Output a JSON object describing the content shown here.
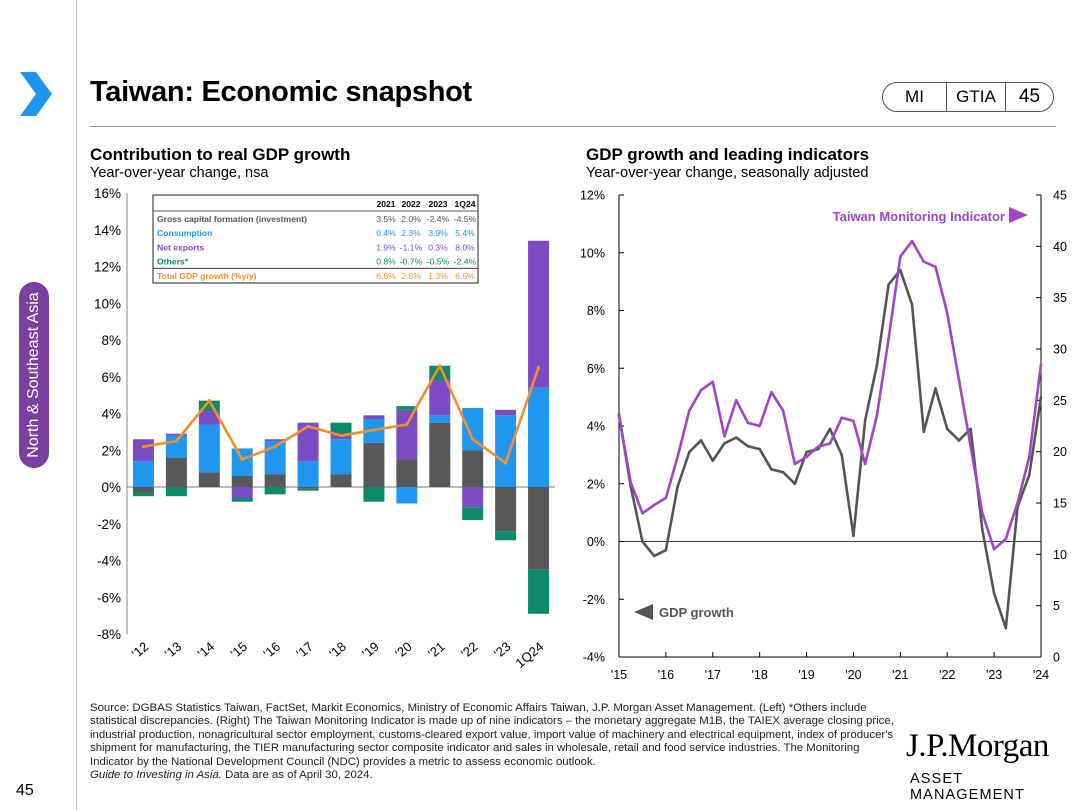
{
  "header": {
    "title": "Taiwan: Economic snapshot",
    "pill": [
      "MI",
      "GTIA",
      "45"
    ]
  },
  "sidebar": {
    "section_label": "North & Southeast Asia"
  },
  "colors": {
    "gcf": "#57585a",
    "consumption": "#1f97f0",
    "net_exports": "#7b4cc4",
    "others": "#0c8a6a",
    "total": "#f58e2c",
    "tmi": "#a044c8",
    "gdp": "#555555"
  },
  "left_chart": {
    "title": "Contribution to real GDP growth",
    "subtitle": "Year-over-year change, nsa",
    "table": {
      "headers": [
        "",
        "2021",
        "2022",
        "2023",
        "1Q24"
      ],
      "rows": [
        {
          "label": "Gross capital formation (investment)",
          "values": [
            "3.5%",
            "2.0%",
            "-2.4%",
            "-4.5%"
          ]
        },
        {
          "label": "Consumption",
          "values": [
            "0.4%",
            "2.3%",
            "3.9%",
            "5.4%"
          ]
        },
        {
          "label": "Net exports",
          "values": [
            "1.9%",
            "-1.1%",
            "0.3%",
            "8.0%"
          ]
        },
        {
          "label": "Others*",
          "values": [
            "0.8%",
            "-0.7%",
            "-0.5%",
            "-2.4%"
          ]
        },
        {
          "label": "Total GDP growth (%y/y)",
          "values": [
            "6.6%",
            "2.6%",
            "1.3%",
            "6.5%"
          ]
        }
      ]
    }
  },
  "right_chart": {
    "title": "GDP growth and leading indicators",
    "subtitle": "Year-over-year change, seasonally adjusted"
  },
  "chart_data": [
    {
      "type": "bar",
      "stacked": true,
      "title": "Contribution to real GDP growth",
      "subtitle": "Year-over-year change, nsa",
      "categories": [
        "'12",
        "'13",
        "'14",
        "'15",
        "'16",
        "'17",
        "'18",
        "'19",
        "'20",
        "'21",
        "'22",
        "'23",
        "1Q24"
      ],
      "ylim": [
        -8,
        16
      ],
      "yticks": [
        -8,
        -6,
        -4,
        -2,
        0,
        2,
        4,
        6,
        8,
        10,
        12,
        14,
        16
      ],
      "ytick_labels": [
        "-8%",
        "-6%",
        "-4%",
        "-2%",
        "0%",
        "2%",
        "4%",
        "6%",
        "8%",
        "10%",
        "12%",
        "14%",
        "16%"
      ],
      "series": [
        {
          "name": "Gross capital formation (investment)",
          "key": "gcf",
          "values": [
            -0.3,
            1.6,
            0.8,
            0.6,
            0.7,
            -0.1,
            0.7,
            2.4,
            1.5,
            3.5,
            2.0,
            -2.4,
            -4.5
          ]
        },
        {
          "name": "Consumption",
          "key": "consumption",
          "values": [
            1.4,
            1.2,
            2.6,
            1.5,
            1.8,
            1.4,
            1.9,
            1.3,
            -0.9,
            0.4,
            2.3,
            3.9,
            5.4
          ]
        },
        {
          "name": "Net exports",
          "key": "net_exports",
          "values": [
            1.2,
            0.1,
            0.7,
            -0.6,
            0.1,
            2.1,
            0.2,
            0.2,
            2.7,
            1.9,
            -1.1,
            0.3,
            8.0
          ]
        },
        {
          "name": "Others*",
          "key": "others",
          "values": [
            -0.2,
            -0.5,
            0.6,
            -0.2,
            -0.4,
            -0.1,
            0.7,
            -0.8,
            0.2,
            0.8,
            -0.7,
            -0.5,
            -2.4
          ]
        }
      ],
      "line": {
        "name": "Total GDP growth (%y/y)",
        "key": "total",
        "values": [
          2.2,
          2.5,
          4.7,
          1.5,
          2.2,
          3.3,
          2.8,
          3.1,
          3.4,
          6.6,
          2.6,
          1.3,
          6.5
        ]
      }
    },
    {
      "type": "line",
      "title": "GDP growth and leading indicators",
      "subtitle": "Year-over-year change, seasonally adjusted",
      "x": [
        2015.0,
        2015.25,
        2015.5,
        2015.75,
        2016.0,
        2016.25,
        2016.5,
        2016.75,
        2017.0,
        2017.25,
        2017.5,
        2017.75,
        2018.0,
        2018.25,
        2018.5,
        2018.75,
        2019.0,
        2019.25,
        2019.5,
        2019.75,
        2020.0,
        2020.25,
        2020.5,
        2020.75,
        2021.0,
        2021.25,
        2021.5,
        2021.75,
        2022.0,
        2022.25,
        2022.5,
        2022.75,
        2023.0,
        2023.25,
        2023.5,
        2023.75,
        2024.0
      ],
      "xticks": [
        2015,
        2016,
        2017,
        2018,
        2019,
        2020,
        2021,
        2022,
        2023,
        2024
      ],
      "xtick_labels": [
        "'15",
        "'16",
        "'17",
        "'18",
        "'19",
        "'20",
        "'21",
        "'22",
        "'23",
        "'24"
      ],
      "y_left": {
        "lim": [
          -4,
          12
        ],
        "ticks": [
          -4,
          -2,
          0,
          2,
          4,
          6,
          8,
          10,
          12
        ],
        "tick_labels": [
          "-4%",
          "-2%",
          "0%",
          "2%",
          "4%",
          "6%",
          "8%",
          "10%",
          "12%"
        ]
      },
      "y_right": {
        "lim": [
          0,
          45
        ],
        "ticks": [
          0,
          5,
          10,
          15,
          20,
          25,
          30,
          35,
          40,
          45
        ],
        "tick_labels": [
          "0",
          "5",
          "10",
          "15",
          "20",
          "25",
          "30",
          "35",
          "40",
          "45"
        ]
      },
      "series": [
        {
          "name": "GDP growth",
          "axis": "left",
          "key": "gdp",
          "label": "GDP growth",
          "values": [
            4.4,
            1.9,
            0.0,
            -0.5,
            -0.3,
            1.9,
            3.1,
            3.5,
            2.8,
            3.4,
            3.6,
            3.3,
            3.2,
            2.5,
            2.4,
            2.0,
            3.1,
            3.2,
            3.9,
            3.0,
            0.2,
            4.2,
            6.1,
            8.9,
            9.4,
            8.2,
            3.8,
            5.3,
            3.9,
            3.5,
            3.9,
            0.4,
            -1.8,
            -3.0,
            1.2,
            2.3,
            5.0
          ]
        },
        {
          "name": "Taiwan Monitoring Indicator",
          "axis": "right",
          "key": "tmi",
          "label": "Taiwan Monitoring Indicator",
          "values": [
            23.5,
            17.0,
            14.0,
            14.8,
            15.5,
            19.5,
            24.0,
            26.0,
            26.8,
            21.5,
            25.0,
            22.8,
            22.5,
            25.8,
            24.0,
            18.8,
            19.5,
            20.5,
            20.8,
            23.3,
            23.0,
            18.8,
            23.5,
            31.0,
            39.0,
            40.5,
            38.5,
            38.0,
            33.5,
            27.0,
            20.5,
            14.0,
            10.5,
            11.5,
            15.0,
            19.5,
            28.5
          ]
        }
      ]
    }
  ],
  "footer": {
    "source": "Source: DGBAS Statistics Taiwan, FactSet, Markit Economics, Ministry of Economic Affairs Taiwan, J.P. Morgan Asset Management. (Left) *Others include statistical discrepancies.  (Right) The Taiwan Monitoring Indicator is made up of nine indicators – the monetary aggregate M1B, the TAIEX average closing price, industrial production, nonagricultural sector employment, customs-cleared export value, import value of machinery and electrical equipment, index of producer's shipment for manufacturing, the TIER manufacturing sector composite indicator and sales in wholesale, retail and food service industries. The Monitoring Indicator by the National Development Council (NDC) provides a metric to assess economic outlook.",
    "guide": "Guide to Investing in Asia.",
    "date": " Data are as of April 30, 2024.",
    "page_number": "45"
  },
  "brand": {
    "name": "J.P.Morgan",
    "tagline": "ASSET MANAGEMENT"
  }
}
